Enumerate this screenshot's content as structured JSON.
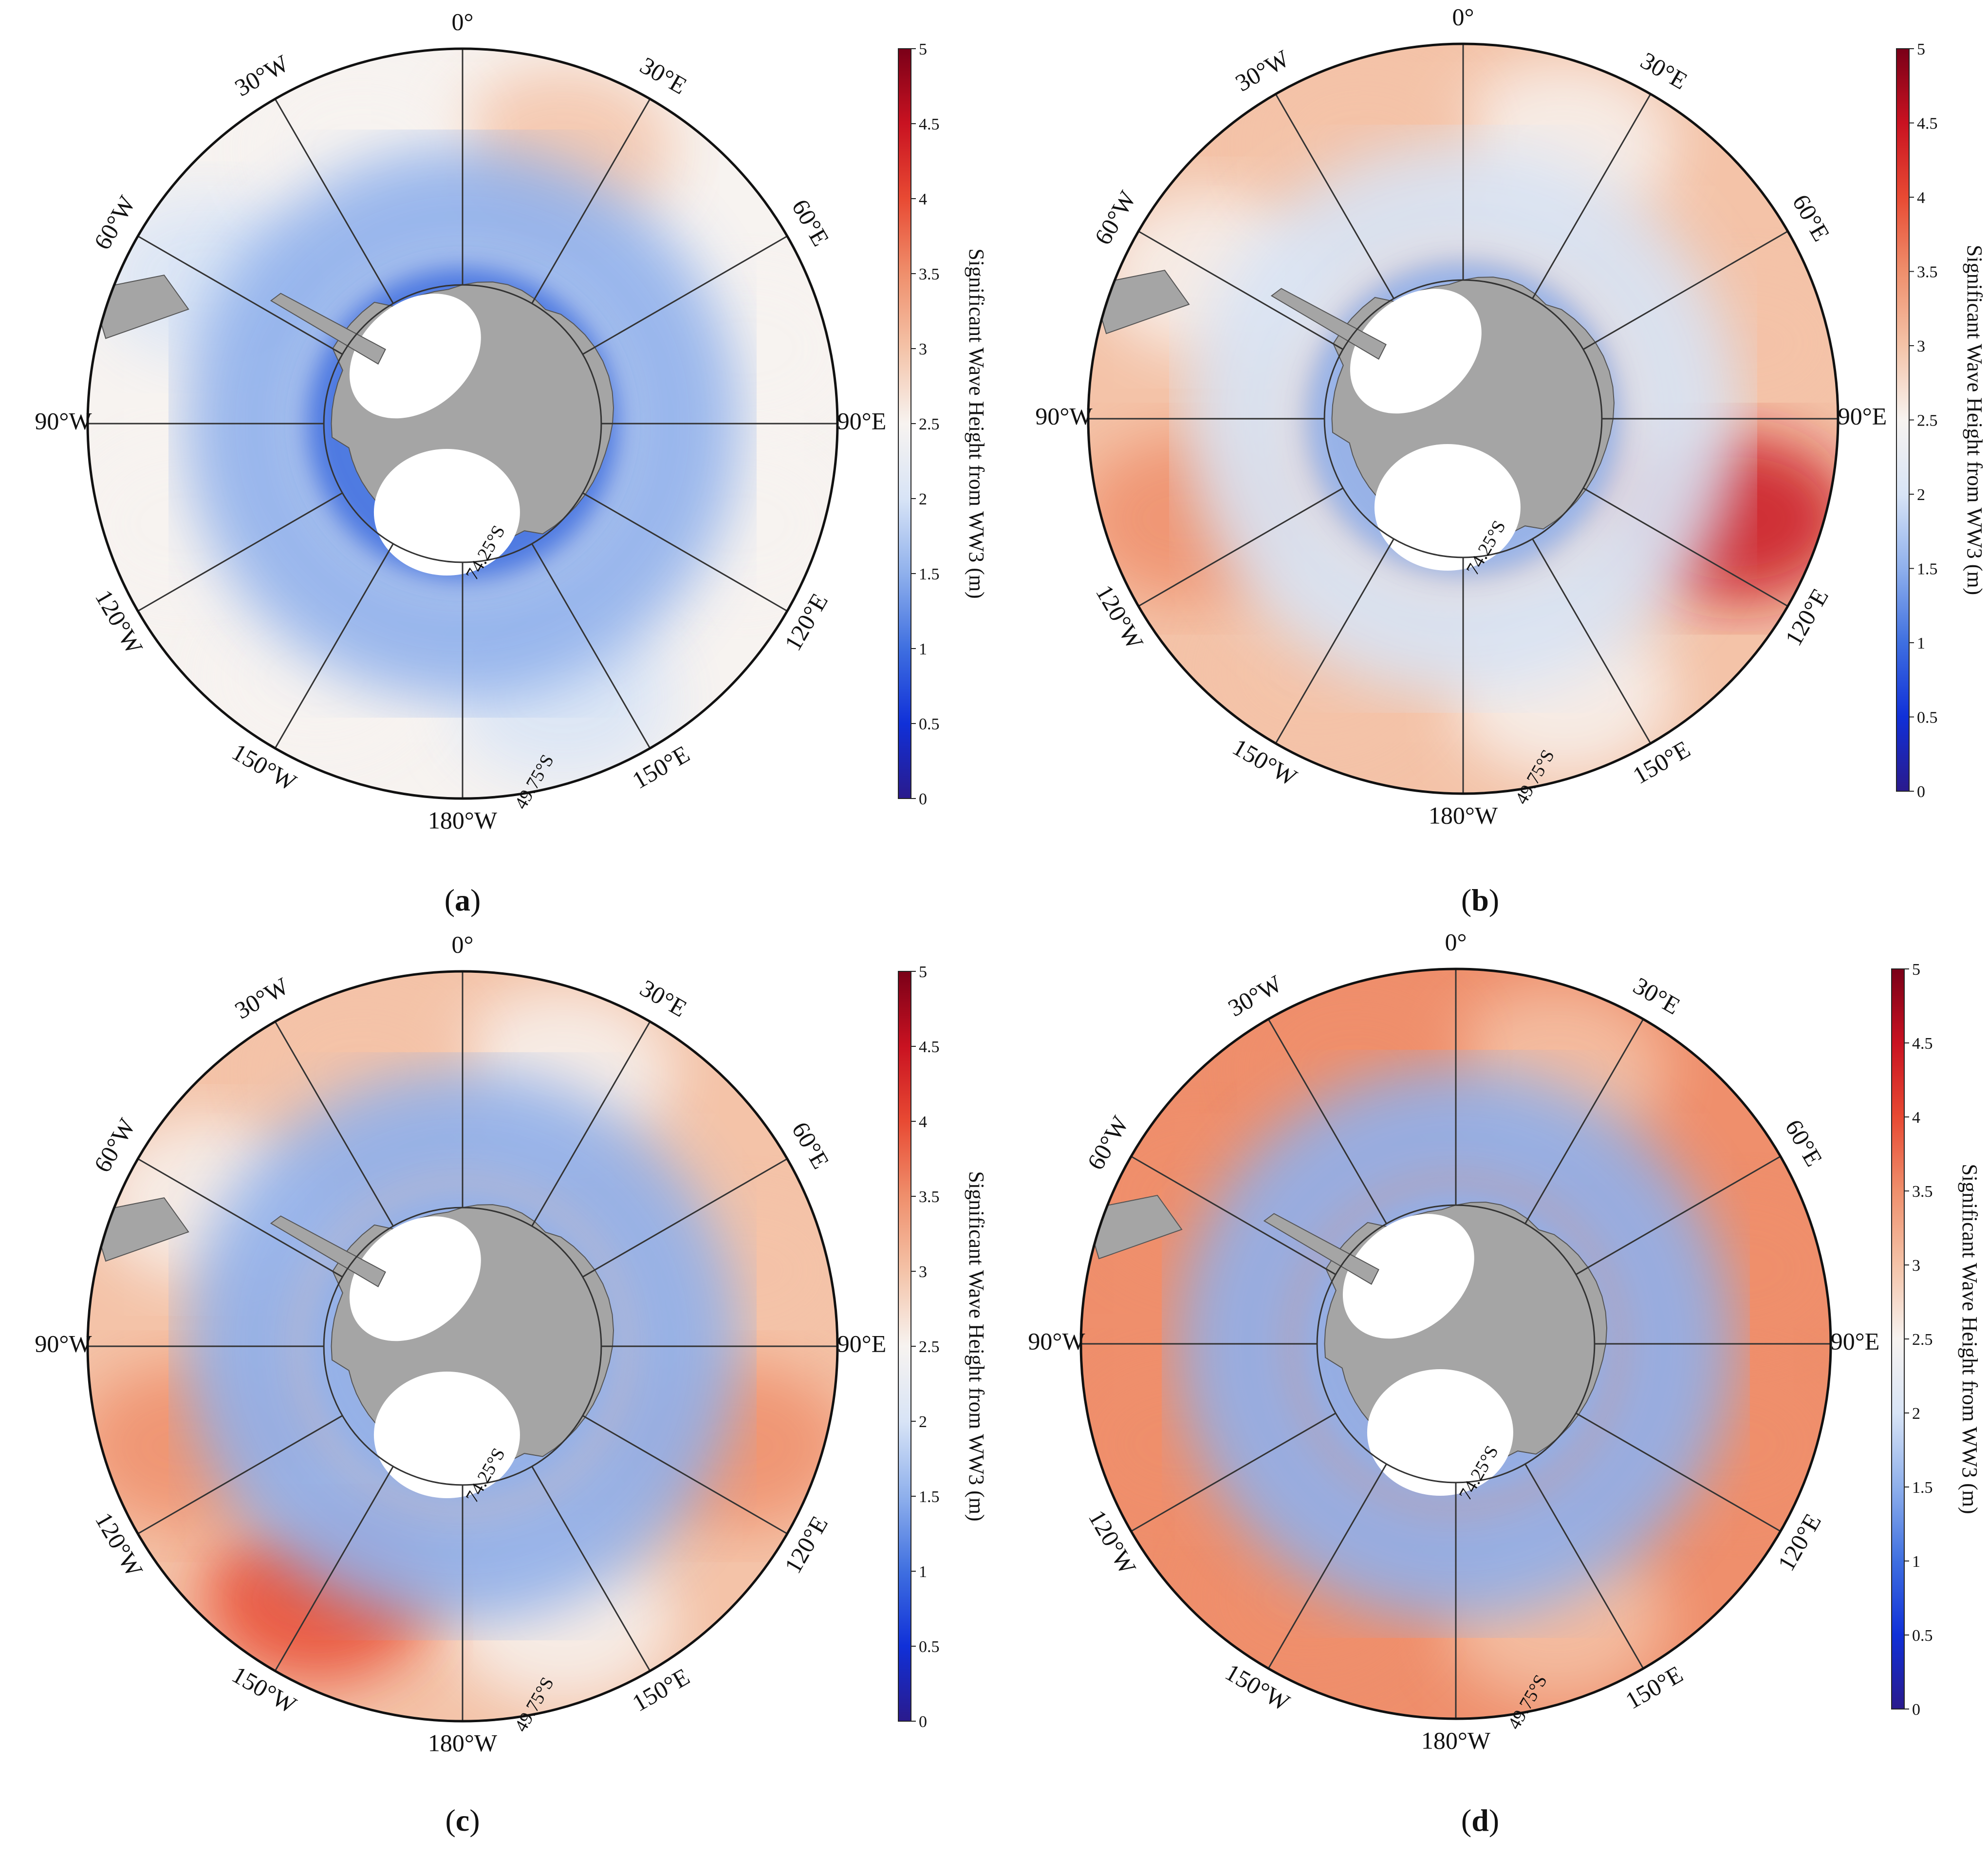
{
  "figure": {
    "colorbar": {
      "label": "Significant Wave Height from WW3 (m)",
      "ticks": [
        "0",
        "0.5",
        "1",
        "1.5",
        "2",
        "2.5",
        "3",
        "3.5",
        "4",
        "4.5",
        "5"
      ],
      "min": 0,
      "max": 5,
      "colors": [
        "#2a1a8c",
        "#1030d8",
        "#3f6fe0",
        "#8fb0ec",
        "#d8e4f6",
        "#f7f3f0",
        "#f4c3a8",
        "#ef8f6c",
        "#e84a33",
        "#c91221",
        "#7a0018"
      ]
    },
    "grid": {
      "meridian_labels": [
        "0°",
        "30°E",
        "60°E",
        "90°E",
        "120°E",
        "150°E",
        "180°W",
        "150°W",
        "120°W",
        "90°W",
        "60°W",
        "30°W"
      ],
      "inner_latitude_label": "74.25°S",
      "outer_latitude_label": "49.75°S"
    },
    "colors": {
      "land": "#a5a5a5",
      "ice_shelf": "#ffffff",
      "grid_line": "#333333",
      "coast": "#555555"
    },
    "panels": [
      {
        "id": "a",
        "label": "(a)",
        "label_letter": "a",
        "description_values": {
          "mean_ring_swh_m": 1.3,
          "outer_swh_m": 2.3,
          "peak_swh_m": 3.2
        }
      },
      {
        "id": "b",
        "label": "(b)",
        "label_letter": "b",
        "description_values": {
          "mean_ring_swh_m": 2.0,
          "outer_swh_m": 3.0,
          "peak_swh_m": 3.9
        }
      },
      {
        "id": "c",
        "label": "(c)",
        "label_letter": "c",
        "description_values": {
          "mean_ring_swh_m": 1.6,
          "outer_swh_m": 2.9,
          "peak_swh_m": 3.8
        }
      },
      {
        "id": "d",
        "label": "(d)",
        "label_letter": "d",
        "description_values": {
          "mean_ring_swh_m": 1.7,
          "outer_swh_m": 3.3,
          "peak_swh_m": 4.1
        }
      }
    ]
  }
}
